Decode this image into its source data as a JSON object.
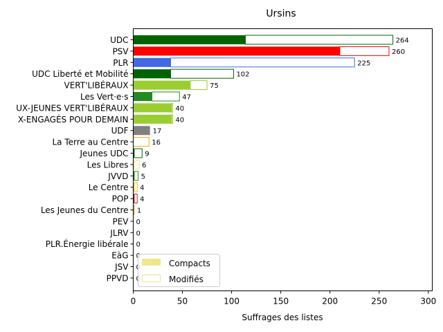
{
  "chart_data": {
    "type": "bar",
    "orientation": "horizontal",
    "stacked": true,
    "title": "Ursins",
    "xlabel": "Suffrages des listes",
    "ylabel": "",
    "xlim": [
      0,
      304
    ],
    "xticks": [
      "0",
      "50",
      "100",
      "150",
      "200",
      "250",
      "300"
    ],
    "grid": false,
    "legend_position": "bottom-left",
    "categories": [
      "UDC",
      "PSV",
      "PLR",
      "UDC Liberté et Mobilité",
      "VERT'LIBÉRAUX",
      "Les Vert·e·s",
      "JEUNES VERT'LIBÉRAUX",
      "JEUNES ENGAGÉS POUR DEMAIN",
      "UDF",
      "La Terre au Centre",
      "Jeunes UDC",
      "Les Libres",
      "JVVD",
      "Le Centre",
      "POP",
      "Les Jeunes du Centre",
      "PEV",
      "JLRV",
      "PLR.Énergie libérale",
      "EàG",
      "JSV",
      "PPVD"
    ],
    "category_labels": [
      "UDC",
      "PSV",
      "PLR",
      "UDC Liberté et Mobilité",
      "VERT'LIBÉRAUX",
      "Les Vert·e·s",
      "UX-JEUNES VERT'LIBÉRAUX",
      "X-ENGAGÉS POUR DEMAIN",
      "UDF",
      "La Terre au Centre",
      "Jeunes UDC",
      "Les Libres",
      "JVVD",
      "Le Centre",
      "POP",
      "Les Jeunes du Centre",
      "PEV",
      "JLRV",
      "PLR.Énergie libérale",
      "EàG",
      "JSV",
      "PPVD"
    ],
    "colors": [
      "#006400",
      "#ff0000",
      "#4169e1",
      "#006400",
      "#9acd32",
      "#228b22",
      "#9acd32",
      "#9acd32",
      "#808080",
      "#ffa500",
      "#006400",
      "#f0e68c",
      "#228b22",
      "#f0c020",
      "#a52a2a",
      "#ff7f00",
      "#f0c020",
      "#4169e1",
      "#4169e1",
      "#cc0000",
      "#ff0000",
      "#9acd32"
    ],
    "series": [
      {
        "name": "Compacts",
        "values": [
          114,
          210,
          38,
          38,
          58,
          19,
          39,
          39,
          17,
          0,
          1,
          1,
          1,
          1,
          1,
          0,
          0,
          0,
          0,
          0,
          0,
          0
        ]
      },
      {
        "name": "Modifiés",
        "values": [
          150,
          50,
          187,
          64,
          17,
          28,
          1,
          1,
          0,
          16,
          8,
          5,
          4,
          3,
          3,
          1,
          0,
          0,
          0,
          0,
          0,
          0
        ]
      }
    ],
    "totals": [
      264,
      260,
      225,
      102,
      75,
      47,
      40,
      40,
      17,
      16,
      9,
      6,
      5,
      4,
      4,
      1,
      0,
      0,
      0,
      0,
      0,
      0
    ],
    "legend": {
      "entries": [
        "Compacts",
        "Modifiés"
      ],
      "swatch_fill": "#f0e68c",
      "swatch_edge": "#f0e68c"
    }
  }
}
